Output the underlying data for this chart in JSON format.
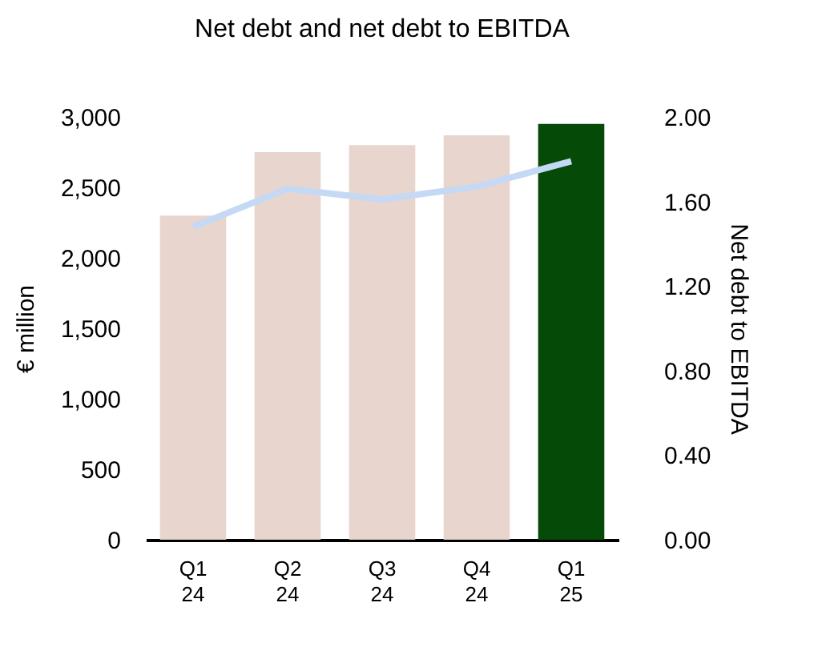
{
  "chart_data": {
    "type": "bar",
    "title": "Net debt and net debt to EBITDA",
    "ylabel": "€ million",
    "y2label": "Net debt to EBITDA",
    "categories": [
      "Q1 24",
      "Q2 24",
      "Q3 24",
      "Q4 24",
      "Q1 25"
    ],
    "series": [
      {
        "colors": [
          "#e8d5ce",
          "#e8d5ce",
          "#e8d5ce",
          "#e8d5ce",
          "#054a06"
        ],
        "values": [
          2300,
          2750,
          2800,
          2870,
          2950
        ]
      },
      {
        "type": "line",
        "axis": "y2",
        "color": "#c5d9f5",
        "values": [
          1.48,
          1.66,
          1.61,
          1.67,
          1.79
        ]
      }
    ],
    "ylim": [
      0,
      3000
    ],
    "yticks": [
      0,
      {
        "value": 500,
        "label": "500"
      },
      {
        "value": 1000,
        "label": "1,000"
      },
      {
        "value": 1500,
        "label": "1,500"
      },
      {
        "value": 2000,
        "label": "2,000"
      },
      {
        "value": 2500,
        "label": "2,500"
      },
      {
        "value": 3000,
        "label": "3,000"
      }
    ],
    "y2lim": [
      0,
      2
    ],
    "y2ticks": [
      {
        "value": 0,
        "label": "0.00"
      },
      {
        "value": 0.4,
        "label": "0.40"
      },
      {
        "value": 0.8,
        "label": "0.80"
      },
      {
        "value": 1.2,
        "label": "1.20"
      },
      {
        "value": 1.6,
        "label": "1.60"
      },
      {
        "value": 2,
        "label": "2.00"
      }
    ],
    "grid": false,
    "legend": false
  }
}
